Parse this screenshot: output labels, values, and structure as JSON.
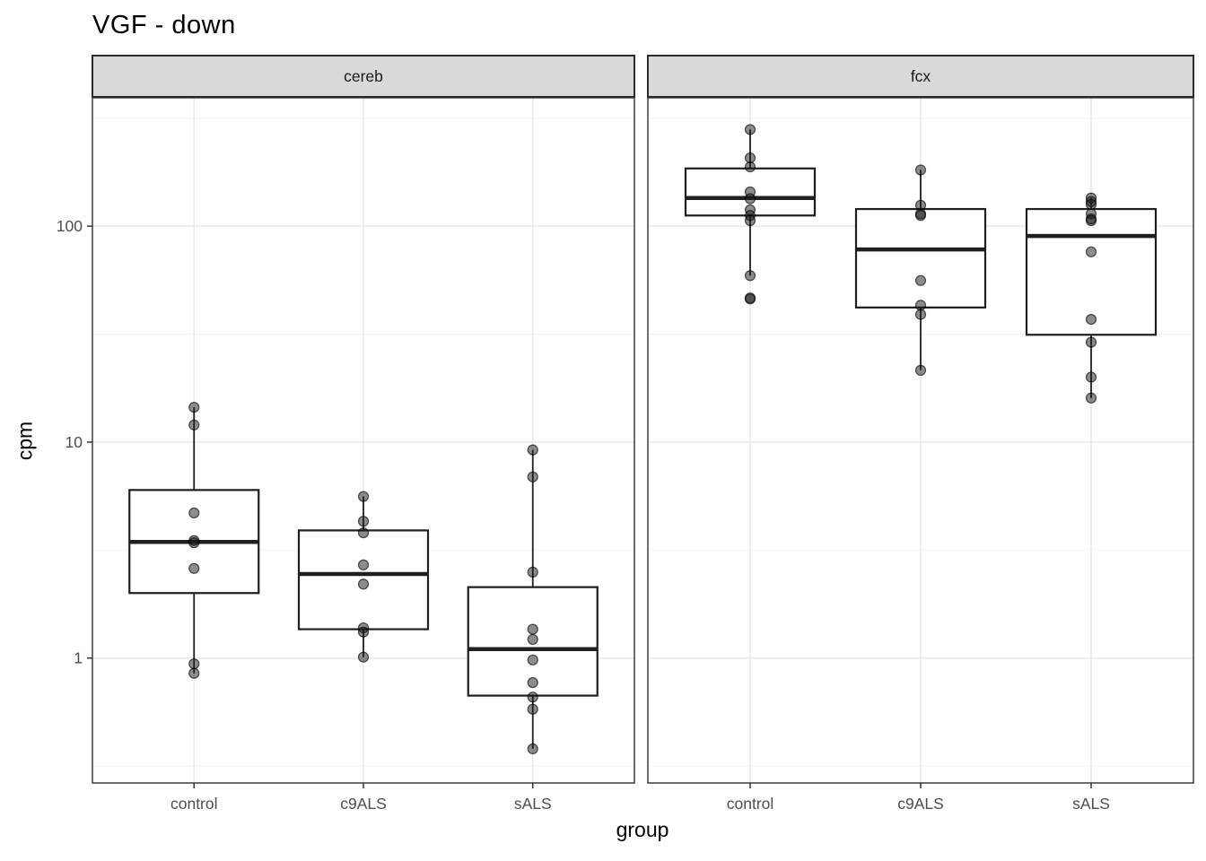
{
  "chart_data": {
    "type": "boxplot",
    "title": "VGF - down",
    "xlabel": "group",
    "ylabel": "cpm",
    "y_scale": "log10",
    "y_ticks": [
      1,
      10,
      100
    ],
    "y_tick_labels": [
      "1",
      "10",
      "100"
    ],
    "y_minor_ticks": [
      0.3162,
      3.162,
      31.62,
      316.2
    ],
    "ylim": [
      0.264,
      393
    ],
    "categories": [
      "control",
      "c9ALS",
      "sALS"
    ],
    "legend": "none",
    "grid": "on",
    "facets": [
      {
        "label": "cereb",
        "boxes": [
          {
            "group": "control",
            "whisker_low": 0.85,
            "q1": 2.0,
            "median": 3.45,
            "q3": 6.0,
            "whisker_high": 14.5,
            "points": [
              14.5,
              12.0,
              4.7,
              3.5,
              3.42,
              2.6,
              0.94,
              0.85
            ]
          },
          {
            "group": "c9ALS",
            "whisker_low": 1.01,
            "q1": 1.36,
            "median": 2.45,
            "q3": 3.9,
            "whisker_high": 5.6,
            "points": [
              5.6,
              4.3,
              3.8,
              2.7,
              2.2,
              1.38,
              1.32,
              1.01
            ]
          },
          {
            "group": "sALS",
            "whisker_low": 0.38,
            "q1": 0.67,
            "median": 1.1,
            "q3": 2.13,
            "whisker_high": 9.2,
            "points": [
              9.2,
              6.9,
              2.5,
              1.36,
              1.22,
              0.98,
              0.77,
              0.66,
              0.58,
              0.38
            ]
          }
        ]
      },
      {
        "label": "fcx",
        "boxes": [
          {
            "group": "control",
            "whisker_low": 59,
            "q1": 112,
            "median": 135,
            "q3": 185,
            "whisker_high": 280,
            "points": [
              280,
              207,
              188,
              144,
              134,
              119,
              112,
              106,
              59,
              46.5,
              46
            ]
          },
          {
            "group": "c9ALS",
            "whisker_low": 21.5,
            "q1": 42,
            "median": 78,
            "q3": 120,
            "whisker_high": 182,
            "points": [
              182,
              125,
              114,
              112,
              56,
              43,
              39,
              21.5
            ]
          },
          {
            "group": "sALS",
            "whisker_low": 16,
            "q1": 31.4,
            "median": 90,
            "q3": 120,
            "whisker_high": 135,
            "points": [
              135,
              130,
              126,
              114,
              108,
              106,
              76,
              37,
              29,
              20,
              16
            ]
          }
        ]
      }
    ],
    "colors": {
      "background": "#ffffff",
      "strip_fill": "#d9d9d9",
      "strip_border": "#2b2b2b",
      "strip_text": "#1a1a1a",
      "panel_border": "#3c3c3c",
      "grid_major": "#e9e9e9",
      "grid_minor": "#f4f4f4",
      "box_stroke": "#1f1f1f",
      "box_fill": "#ffffff",
      "point_fill": "#1a1a1a",
      "tick_color": "#333333",
      "tick_label_color": "#4d4d4d"
    }
  }
}
